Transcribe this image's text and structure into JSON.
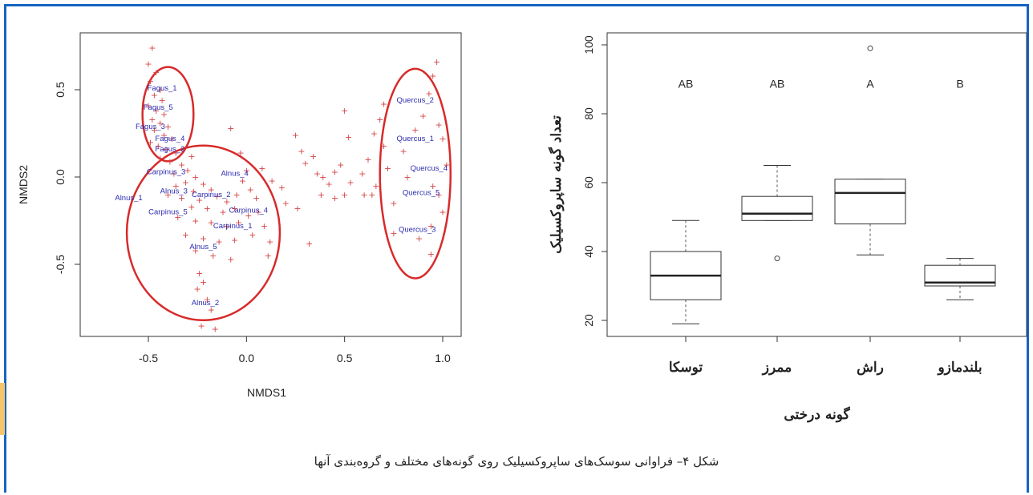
{
  "caption": "شکل ۴– فراوانی سوسک‌های ساپروکسیلیک روی گونه‌های مختلف و گروه‌بندی آنها",
  "chart_data": [
    {
      "type": "scatter",
      "xlabel": "NMDS1",
      "ylabel": "NMDS2",
      "xlim": [
        -0.75,
        1.1
      ],
      "ylim": [
        -0.9,
        0.75
      ],
      "x_ticks": [
        "-0.5",
        "0.0",
        "0.5",
        "1.0"
      ],
      "y_ticks": [
        "-0.5",
        "0.0",
        "0.5"
      ],
      "grid": false,
      "marker": "+",
      "points": [
        [
          -0.48,
          0.74
        ],
        [
          -0.5,
          0.65
        ],
        [
          -0.46,
          0.6
        ],
        [
          -0.49,
          0.55
        ],
        [
          -0.44,
          0.5
        ],
        [
          -0.47,
          0.47
        ],
        [
          -0.43,
          0.44
        ],
        [
          -0.5,
          0.41
        ],
        [
          -0.46,
          0.38
        ],
        [
          -0.42,
          0.36
        ],
        [
          -0.48,
          0.33
        ],
        [
          -0.44,
          0.31
        ],
        [
          -0.4,
          0.29
        ],
        [
          -0.47,
          0.27
        ],
        [
          -0.42,
          0.24
        ],
        [
          -0.38,
          0.22
        ],
        [
          -0.49,
          0.2
        ],
        [
          -0.45,
          0.18
        ],
        [
          -0.41,
          0.16
        ],
        [
          -0.36,
          0.14
        ],
        [
          -0.44,
          0.11
        ],
        [
          -0.39,
          0.09
        ],
        [
          -0.33,
          0.07
        ],
        [
          -0.28,
          0.12
        ],
        [
          -0.3,
          0.04
        ],
        [
          -0.37,
          0.02
        ],
        [
          -0.26,
          0.0
        ],
        [
          -0.31,
          -0.03
        ],
        [
          -0.36,
          -0.05
        ],
        [
          -0.22,
          -0.04
        ],
        [
          -0.27,
          -0.08
        ],
        [
          -0.18,
          -0.07
        ],
        [
          -0.4,
          -0.1
        ],
        [
          -0.33,
          -0.12
        ],
        [
          -0.24,
          -0.13
        ],
        [
          -0.15,
          -0.11
        ],
        [
          -0.1,
          -0.14
        ],
        [
          -0.05,
          -0.1
        ],
        [
          0.02,
          -0.07
        ],
        [
          0.05,
          -0.12
        ],
        [
          -0.28,
          -0.17
        ],
        [
          -0.2,
          -0.18
        ],
        [
          -0.12,
          -0.2
        ],
        [
          -0.06,
          -0.18
        ],
        [
          0.01,
          -0.22
        ],
        [
          0.06,
          -0.2
        ],
        [
          -0.35,
          -0.23
        ],
        [
          -0.26,
          -0.25
        ],
        [
          -0.18,
          -0.26
        ],
        [
          -0.1,
          -0.28
        ],
        [
          -0.04,
          -0.26
        ],
        [
          0.09,
          -0.28
        ],
        [
          -0.31,
          -0.33
        ],
        [
          -0.22,
          -0.35
        ],
        [
          -0.14,
          -0.37
        ],
        [
          -0.06,
          -0.36
        ],
        [
          0.03,
          -0.33
        ],
        [
          0.12,
          -0.37
        ],
        [
          -0.26,
          -0.42
        ],
        [
          -0.17,
          -0.45
        ],
        [
          -0.08,
          -0.47
        ],
        [
          0.11,
          -0.45
        ],
        [
          -0.24,
          -0.55
        ],
        [
          -0.22,
          -0.6
        ],
        [
          -0.25,
          -0.64
        ],
        [
          -0.2,
          -0.7
        ],
        [
          -0.18,
          -0.76
        ],
        [
          -0.23,
          -0.85
        ],
        [
          -0.16,
          -0.87
        ],
        [
          -0.08,
          0.28
        ],
        [
          -0.03,
          0.14
        ],
        [
          0.0,
          0.04
        ],
        [
          -0.02,
          -0.02
        ],
        [
          0.08,
          0.05
        ],
        [
          0.13,
          -0.02
        ],
        [
          0.18,
          -0.06
        ],
        [
          0.25,
          0.24
        ],
        [
          0.28,
          0.15
        ],
        [
          0.3,
          0.08
        ],
        [
          0.34,
          0.12
        ],
        [
          0.36,
          0.02
        ],
        [
          0.39,
          0.0
        ],
        [
          0.42,
          -0.04
        ],
        [
          0.45,
          0.03
        ],
        [
          0.48,
          0.07
        ],
        [
          0.5,
          0.38
        ],
        [
          0.52,
          0.23
        ],
        [
          0.5,
          -0.1
        ],
        [
          0.53,
          -0.03
        ],
        [
          0.45,
          -0.12
        ],
        [
          0.38,
          -0.1
        ],
        [
          0.59,
          0.02
        ],
        [
          0.62,
          0.1
        ],
        [
          0.65,
          0.25
        ],
        [
          0.68,
          0.33
        ],
        [
          0.7,
          0.42
        ],
        [
          0.72,
          0.05
        ],
        [
          0.66,
          -0.05
        ],
        [
          0.64,
          -0.1
        ],
        [
          0.75,
          -0.15
        ],
        [
          0.8,
          0.15
        ],
        [
          0.82,
          0.0
        ],
        [
          0.86,
          0.27
        ],
        [
          0.9,
          0.35
        ],
        [
          0.93,
          0.48
        ],
        [
          0.95,
          0.58
        ],
        [
          0.97,
          0.66
        ],
        [
          0.98,
          0.3
        ],
        [
          1.0,
          0.22
        ],
        [
          1.02,
          0.07
        ],
        [
          0.95,
          -0.05
        ],
        [
          0.98,
          -0.1
        ],
        [
          1.0,
          -0.2
        ],
        [
          0.94,
          -0.28
        ],
        [
          0.88,
          -0.35
        ],
        [
          0.94,
          -0.44
        ],
        [
          0.75,
          -0.32
        ],
        [
          0.7,
          0.18
        ],
        [
          0.6,
          -0.1
        ],
        [
          0.32,
          -0.38
        ],
        [
          0.26,
          -0.18
        ],
        [
          0.2,
          -0.15
        ]
      ],
      "labels": [
        {
          "text": "Fagus_1",
          "x": -0.43,
          "y": 0.51
        },
        {
          "text": "Fagus_5",
          "x": -0.45,
          "y": 0.4
        },
        {
          "text": "Fagus_3",
          "x": -0.49,
          "y": 0.29
        },
        {
          "text": "Fagus_4",
          "x": -0.39,
          "y": 0.22
        },
        {
          "text": "Fagus_2",
          "x": -0.39,
          "y": 0.16
        },
        {
          "text": "Carpinus_3",
          "x": -0.41,
          "y": 0.03
        },
        {
          "text": "Alnus_4",
          "x": -0.06,
          "y": 0.02
        },
        {
          "text": "Alnus_3",
          "x": -0.37,
          "y": -0.08
        },
        {
          "text": "Carpinus_2",
          "x": -0.18,
          "y": -0.1
        },
        {
          "text": "Alnus_1",
          "x": -0.6,
          "y": -0.12
        },
        {
          "text": "Carpinus_5",
          "x": -0.4,
          "y": -0.2
        },
        {
          "text": "Carpinus_4",
          "x": 0.01,
          "y": -0.19
        },
        {
          "text": "Carpinus_1",
          "x": -0.07,
          "y": -0.28
        },
        {
          "text": "Alnus_5",
          "x": -0.22,
          "y": -0.4
        },
        {
          "text": "Alnus_2",
          "x": -0.21,
          "y": -0.72
        },
        {
          "text": "Quercus_2",
          "x": 0.86,
          "y": 0.44
        },
        {
          "text": "Quercus_1",
          "x": 0.86,
          "y": 0.22
        },
        {
          "text": "Quercus_4",
          "x": 0.93,
          "y": 0.05
        },
        {
          "text": "Quercus_5",
          "x": 0.89,
          "y": -0.09
        },
        {
          "text": "Quercus_3",
          "x": 0.87,
          "y": -0.3
        }
      ],
      "ellipses": [
        {
          "cx": -0.4,
          "cy": 0.36,
          "rx": 0.13,
          "ry": 0.27
        },
        {
          "cx": -0.22,
          "cy": -0.32,
          "rx": 0.39,
          "ry": 0.5
        },
        {
          "cx": 0.86,
          "cy": 0.02,
          "rx": 0.18,
          "ry": 0.6
        }
      ]
    },
    {
      "type": "box",
      "xlabel": "گونه درختی",
      "ylabel": "تعداد گونه ساپروکسیلیک",
      "ylim": [
        18,
        102
      ],
      "y_ticks": [
        "20",
        "40",
        "60",
        "80",
        "100"
      ],
      "categories": [
        "توسکا",
        "ممرز",
        "راش",
        "بلندمازو"
      ],
      "groups": [
        "AB",
        "AB",
        "A",
        "B"
      ],
      "boxes": [
        {
          "min": 19,
          "q1": 26,
          "median": 33,
          "q3": 40,
          "max": 49,
          "outliers": []
        },
        {
          "min": 49,
          "q1": 49,
          "median": 51,
          "q3": 56,
          "max": 65,
          "outliers": [
            38
          ]
        },
        {
          "min": 39,
          "q1": 48,
          "median": 57,
          "q3": 61,
          "max": 61,
          "outliers": [
            99
          ]
        },
        {
          "min": 26,
          "q1": 30,
          "median": 31,
          "q3": 36,
          "max": 38,
          "outliers": []
        }
      ]
    }
  ]
}
